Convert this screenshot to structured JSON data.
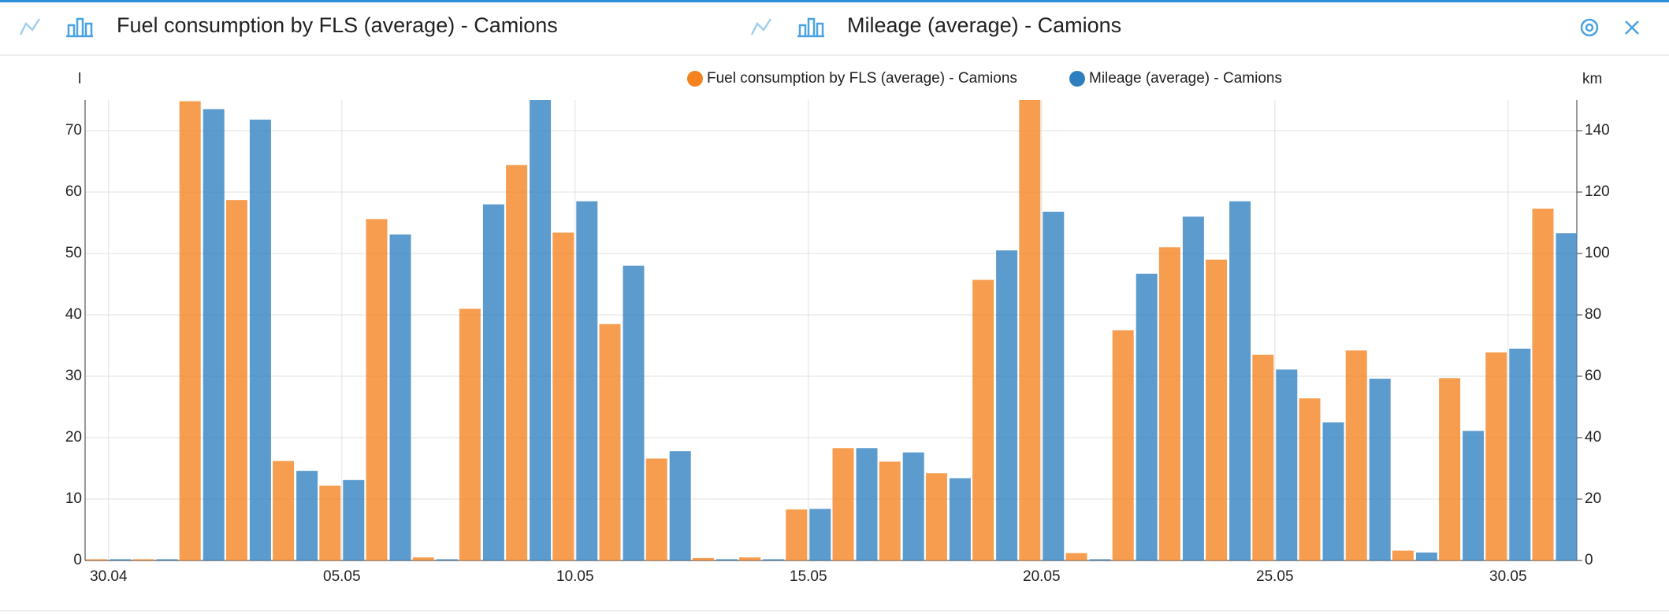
{
  "header": {
    "panels": [
      {
        "title": "Fuel consumption by FLS (average) - Camions"
      },
      {
        "title": "Mileage (average) - Camions"
      }
    ]
  },
  "chart_data": {
    "type": "bar",
    "categories": [
      "30.04",
      null,
      null,
      null,
      null,
      "05.05",
      null,
      null,
      null,
      null,
      "10.05",
      null,
      null,
      null,
      null,
      "15.05",
      null,
      null,
      null,
      null,
      "20.05",
      null,
      null,
      null,
      null,
      "25.05",
      null,
      null,
      null,
      null,
      "30.05",
      null
    ],
    "y_label": "l",
    "y2_label": "km",
    "series": [
      {
        "name": "Fuel consumption by FLS (average) - Camions",
        "color": "#f5821f",
        "values": [
          0.2,
          0.2,
          74.8,
          58.7,
          16.2,
          12.2,
          55.6,
          0.5,
          41,
          64.4,
          53.4,
          38.5,
          16.6,
          0.4,
          0.5,
          8.3,
          18.3,
          16.1,
          14.2,
          45.7,
          75,
          1.2,
          37.5,
          51,
          49,
          33.5,
          26.4,
          34.2,
          1.6,
          29.7,
          33.9,
          57.3
        ]
      },
      {
        "name": "Mileage (average) - Camions",
        "color": "#2e7fbf",
        "axis": "y2",
        "values": [
          0.4,
          0.4,
          147,
          143.6,
          29.2,
          26.2,
          106.2,
          0.4,
          116,
          150,
          117,
          96,
          35.6,
          0.4,
          0.4,
          16.8,
          36.6,
          35.2,
          26.8,
          101,
          113.6,
          0.4,
          93.4,
          112,
          117,
          62.2,
          45,
          59.2,
          2.6,
          42.2,
          69,
          106.6
        ]
      }
    ],
    "ylim": [
      0,
      75
    ],
    "yticks": [
      0,
      10,
      20,
      30,
      40,
      50,
      60,
      70
    ],
    "y2lim": [
      0,
      150
    ],
    "y2ticks": [
      0,
      20,
      40,
      60,
      80,
      100,
      120,
      140
    ],
    "grid": true,
    "legend": "top"
  }
}
